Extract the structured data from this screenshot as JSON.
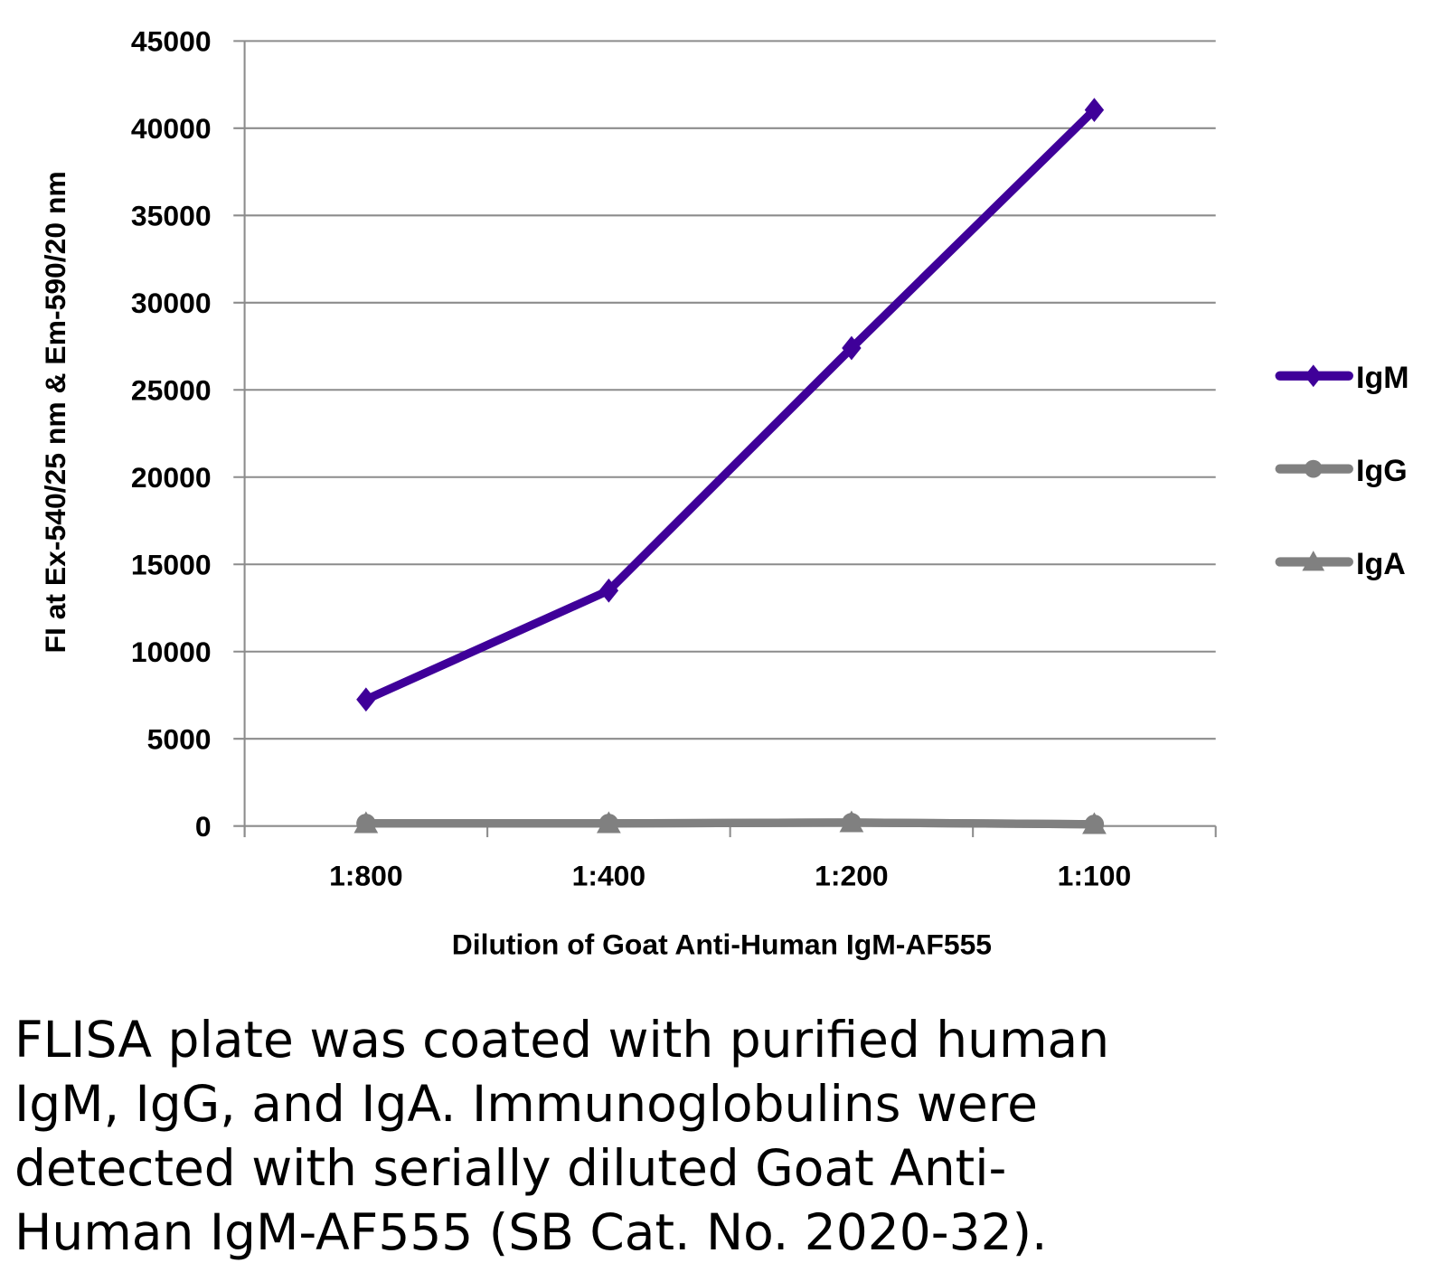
{
  "chart_data": {
    "type": "line",
    "title": "",
    "xlabel": "Dilution of Goat Anti-Human IgM-AF555",
    "ylabel": "FI at Ex-540/25 nm & Em-590/20 nm",
    "categories": [
      "1:800",
      "1:400",
      "1:200",
      "1:100"
    ],
    "ylim": [
      0,
      45000
    ],
    "yticks": [
      0,
      5000,
      10000,
      15000,
      20000,
      25000,
      30000,
      35000,
      40000,
      45000
    ],
    "grid": true,
    "legend_position": "right",
    "series": [
      {
        "name": "IgM",
        "marker": "diamond",
        "color": "#3f0099",
        "values": [
          7250,
          13500,
          27400,
          41050
        ]
      },
      {
        "name": "IgG",
        "marker": "circle",
        "color": "#808080",
        "values": [
          150,
          150,
          200,
          100
        ]
      },
      {
        "name": "IgA",
        "marker": "triangle",
        "color": "#808080",
        "values": [
          150,
          150,
          200,
          100
        ]
      }
    ]
  },
  "caption": {
    "lines": [
      "FLISA plate was coated with purified human",
      "IgM, IgG, and IgA.  Immunoglobulins were",
      "detected with serially diluted Goat Anti-",
      "Human IgM-AF555 (SB Cat. No. 2020-32)."
    ]
  }
}
